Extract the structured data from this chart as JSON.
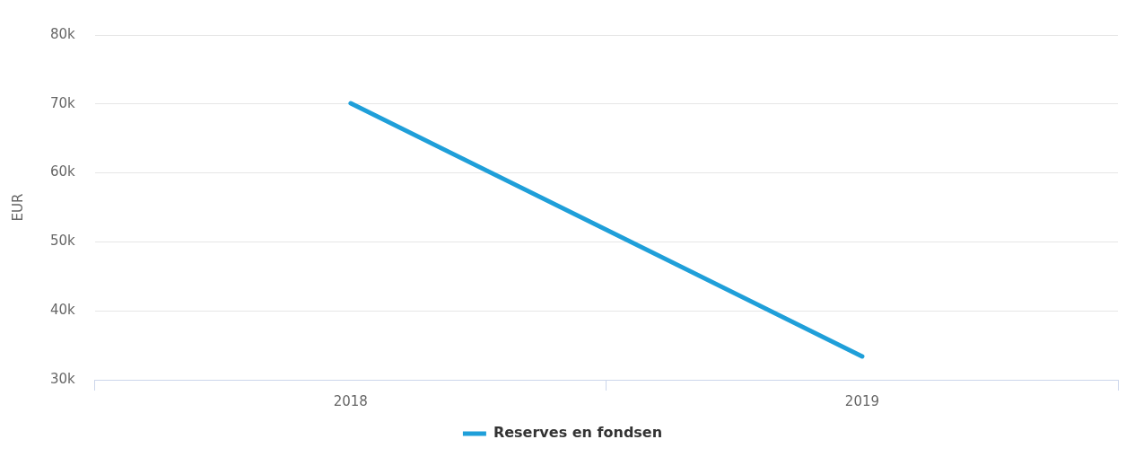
{
  "chart_data": {
    "type": "line",
    "ylabel": "EUR",
    "categories": [
      "2018",
      "2019"
    ],
    "series": [
      {
        "name": "Reserves en fondsen",
        "color": "#1f9fd9",
        "values": [
          70100,
          33400
        ]
      }
    ],
    "ylim": [
      30000,
      80000
    ],
    "yticks": [
      {
        "value": 30000,
        "label": "30k"
      },
      {
        "value": 40000,
        "label": "40k"
      },
      {
        "value": 50000,
        "label": "50k"
      },
      {
        "value": 60000,
        "label": "60k"
      },
      {
        "value": 70000,
        "label": "70k"
      },
      {
        "value": 80000,
        "label": "80k"
      }
    ],
    "grid": "y",
    "legend": "bottom",
    "marker": "none",
    "line_style": "solid"
  }
}
